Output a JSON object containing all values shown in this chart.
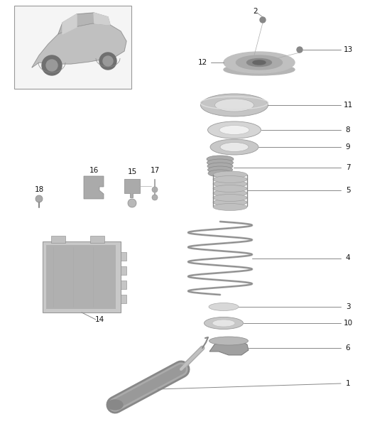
{
  "bg_color": "#ffffff",
  "part_gray": "#aaaaaa",
  "part_dark": "#777777",
  "part_mid": "#999999",
  "line_color": "#888888",
  "label_color": "#111111",
  "label_fs": 7.5
}
